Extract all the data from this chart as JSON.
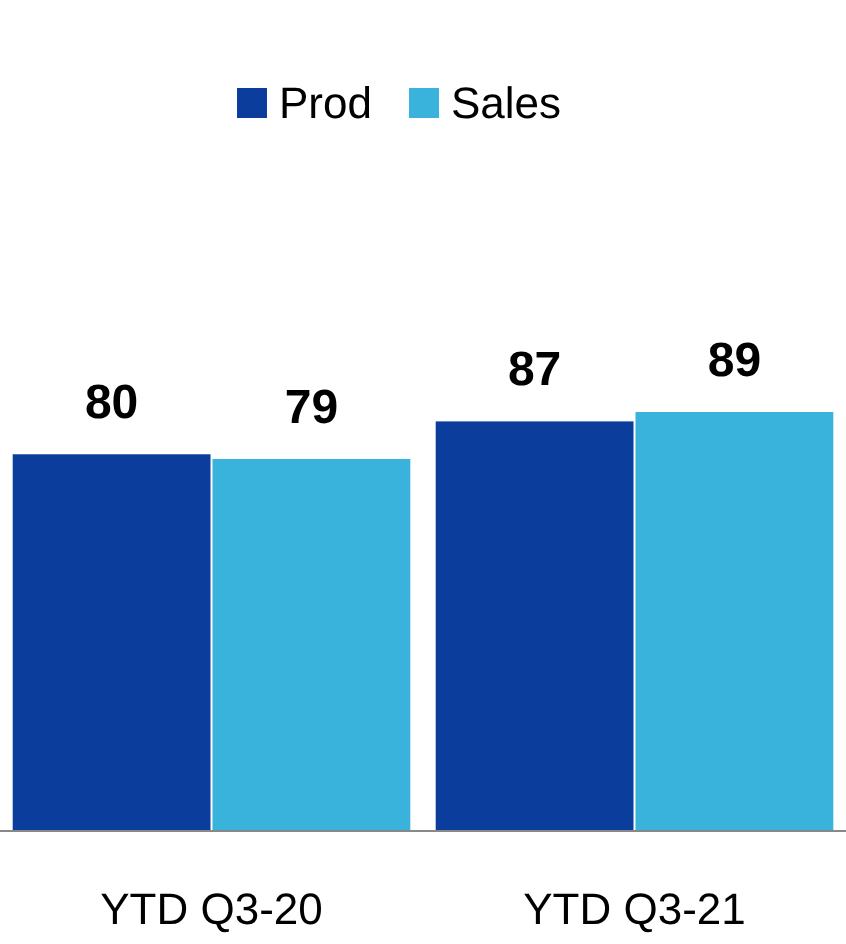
{
  "chart_data": {
    "type": "bar",
    "categories": [
      "YTD Q3-20",
      "YTD Q3-21"
    ],
    "series": [
      {
        "name": "Prod",
        "color": "#0a3d9c",
        "values": [
          80,
          87
        ]
      },
      {
        "name": "Sales",
        "color": "#3ab3dc",
        "values": [
          79,
          89
        ]
      }
    ],
    "data_labels": true,
    "legend": "top"
  }
}
